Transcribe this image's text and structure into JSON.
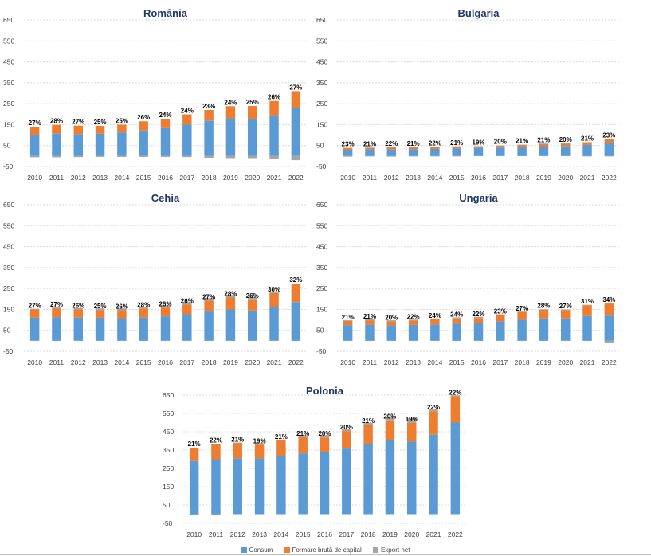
{
  "colors": {
    "consum": "#5b9bd5",
    "capital": "#ed7d31",
    "export": "#a5a5a5"
  },
  "legend": [
    {
      "label": "Consum",
      "color": "#5b9bd5"
    },
    {
      "label": "Formare brută de capital",
      "color": "#ed7d31"
    },
    {
      "label": "Export net",
      "color": "#a5a5a5"
    }
  ],
  "chart_data": [
    {
      "type": "bar",
      "stacked": true,
      "title": "România",
      "categories": [
        "2010",
        "2011",
        "2012",
        "2013",
        "2014",
        "2015",
        "2016",
        "2017",
        "2018",
        "2019",
        "2020",
        "2021",
        "2022"
      ],
      "ylim": [
        -50,
        650
      ],
      "yticks": [
        "650",
        "550",
        "450",
        "350",
        "250",
        "150",
        "50",
        "-50"
      ],
      "grid": true,
      "series": [
        {
          "name": "Consum",
          "values": [
            100,
            107,
            105,
            107,
            113,
            122,
            133,
            150,
            168,
            180,
            177,
            195,
            228
          ]
        },
        {
          "name": "Formare brută de capital",
          "values": [
            40,
            42,
            40,
            37,
            37,
            44,
            45,
            49,
            52,
            58,
            62,
            68,
            82
          ]
        },
        {
          "name": "Export net",
          "values": [
            -6,
            -6,
            -5,
            -4,
            -4,
            -4,
            -4,
            -5,
            -8,
            -10,
            -10,
            -14,
            -20
          ]
        }
      ],
      "labels": [
        "27%",
        "28%",
        "27%",
        "25%",
        "25%",
        "26%",
        "24%",
        "24%",
        "23%",
        "24%",
        "25%",
        "26%",
        "27%"
      ]
    },
    {
      "type": "bar",
      "stacked": true,
      "title": "Bulgaria",
      "categories": [
        "2010",
        "2011",
        "2012",
        "2013",
        "2014",
        "2015",
        "2016",
        "2017",
        "2018",
        "2019",
        "2020",
        "2021",
        "2022"
      ],
      "ylim": [
        -50,
        650
      ],
      "yticks": [
        "650",
        "550",
        "450",
        "350",
        "250",
        "150",
        "50",
        "-50"
      ],
      "grid": true,
      "series": [
        {
          "name": "Consum",
          "values": [
            30,
            32,
            33,
            33,
            34,
            36,
            38,
            40,
            43,
            47,
            48,
            53,
            63
          ]
        },
        {
          "name": "Formare brută de capital",
          "values": [
            9,
            8,
            9,
            8,
            9,
            10,
            9,
            10,
            11,
            12,
            12,
            13,
            19
          ]
        },
        {
          "name": "Export net",
          "values": [
            -3,
            -2,
            -3,
            -2,
            -2,
            -1,
            0,
            0,
            0,
            0,
            0,
            -1,
            -1
          ]
        }
      ],
      "labels": [
        "23%",
        "21%",
        "22%",
        "21%",
        "22%",
        "21%",
        "19%",
        "20%",
        "21%",
        "21%",
        "20%",
        "21%",
        "23%"
      ]
    },
    {
      "type": "bar",
      "stacked": true,
      "title": "Cehia",
      "categories": [
        "2010",
        "2011",
        "2012",
        "2013",
        "2014",
        "2015",
        "2016",
        "2017",
        "2018",
        "2019",
        "2020",
        "2021",
        "2022"
      ],
      "ylim": [
        -50,
        650
      ],
      "yticks": [
        "650",
        "550",
        "450",
        "350",
        "250",
        "150",
        "50",
        "-50"
      ],
      "grid": true,
      "series": [
        {
          "name": "Consum",
          "values": [
            110,
            113,
            111,
            110,
            108,
            111,
            117,
            127,
            140,
            150,
            145,
            160,
            185
          ]
        },
        {
          "name": "Formare brută de capital",
          "values": [
            40,
            42,
            39,
            37,
            38,
            43,
            41,
            46,
            52,
            57,
            53,
            68,
            88
          ]
        },
        {
          "name": "Export net",
          "values": [
            3,
            4,
            6,
            8,
            9,
            9,
            11,
            12,
            12,
            12,
            13,
            8,
            0
          ]
        }
      ],
      "labels": [
        "27%",
        "27%",
        "26%",
        "25%",
        "26%",
        "28%",
        "26%",
        "26%",
        "27%",
        "28%",
        "26%",
        "30%",
        "32%"
      ]
    },
    {
      "type": "bar",
      "stacked": true,
      "title": "Ungaria",
      "categories": [
        "2010",
        "2011",
        "2012",
        "2013",
        "2014",
        "2015",
        "2016",
        "2017",
        "2018",
        "2019",
        "2020",
        "2021",
        "2022"
      ],
      "ylim": [
        -50,
        650
      ],
      "yticks": [
        "650",
        "550",
        "450",
        "350",
        "250",
        "150",
        "50",
        "-50"
      ],
      "grid": true,
      "series": [
        {
          "name": "Consum",
          "values": [
            75,
            77,
            74,
            76,
            78,
            81,
            85,
            93,
            100,
            107,
            107,
            118,
            120
          ]
        },
        {
          "name": "Formare brută de capital",
          "values": [
            20,
            21,
            19,
            21,
            25,
            26,
            24,
            30,
            37,
            42,
            40,
            52,
            58
          ]
        },
        {
          "name": "Export net",
          "values": [
            4,
            5,
            5,
            4,
            4,
            5,
            6,
            4,
            3,
            2,
            3,
            2,
            -8
          ]
        }
      ],
      "labels": [
        "21%",
        "21%",
        "20%",
        "22%",
        "24%",
        "24%",
        "22%",
        "23%",
        "27%",
        "28%",
        "27%",
        "31%",
        "34%"
      ]
    },
    {
      "type": "bar",
      "stacked": true,
      "title": "Polonia",
      "categories": [
        "2010",
        "2011",
        "2012",
        "2013",
        "2014",
        "2015",
        "2016",
        "2017",
        "2018",
        "2019",
        "2020",
        "2021",
        "2022"
      ],
      "ylim": [
        -50,
        650
      ],
      "yticks": [
        "650",
        "550",
        "450",
        "350",
        "250",
        "150",
        "50",
        "-50"
      ],
      "grid": true,
      "series": [
        {
          "name": "Consum",
          "values": [
            290,
            300,
            305,
            305,
            318,
            332,
            340,
            358,
            382,
            405,
            396,
            434,
            500
          ]
        },
        {
          "name": "Formare brută de capital",
          "values": [
            73,
            83,
            82,
            74,
            84,
            88,
            79,
            96,
            107,
            107,
            102,
            128,
            144
          ]
        },
        {
          "name": "Export net",
          "values": [
            -5,
            -4,
            4,
            9,
            6,
            10,
            13,
            12,
            9,
            17,
            25,
            10,
            5
          ]
        }
      ],
      "labels": [
        "21%",
        "22%",
        "21%",
        "19%",
        "21%",
        "21%",
        "20%",
        "20%",
        "21%",
        "20%",
        "19%",
        "22%",
        "22%"
      ]
    }
  ]
}
